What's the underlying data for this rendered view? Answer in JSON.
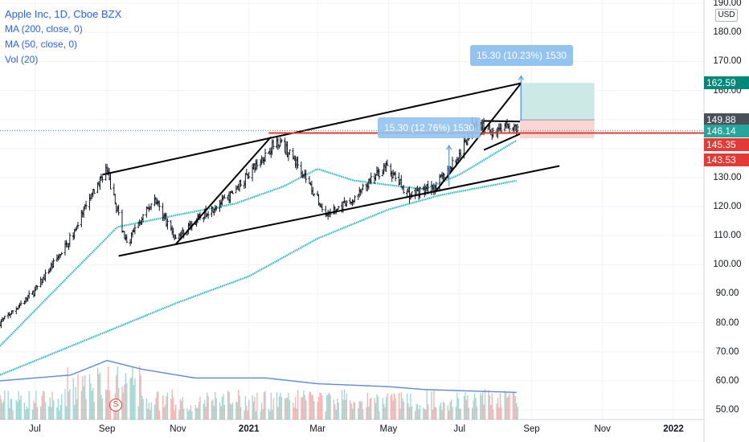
{
  "legend": {
    "title": "Apple Inc, 1D, Cboe BZX",
    "ma200": "MA (200, close, 0)",
    "ma50": "MA (50, close, 0)",
    "vol": "Vol (20)"
  },
  "currency": "USD",
  "colors": {
    "up": "#26a69a",
    "down": "#ef5350",
    "candle": "#131722",
    "ma": "#2fbdc8",
    "vol_ma": "#2962ff",
    "accent": "#2962ff",
    "target": "#cde9e6",
    "stop": "#f9d5d4",
    "measure_box": "#93c3f0"
  },
  "measure_labels": {
    "main": "15.30 (10.23%) 1530",
    "secondary": "15.30 (12.76%) 1530"
  },
  "price_tags": [
    {
      "value": "162.59",
      "price": 162.59,
      "bg": "#00897b"
    },
    {
      "value": "149.88",
      "price": 149.88,
      "bg": "#4a4f5a"
    },
    {
      "value": "146.14",
      "price": 146.14,
      "bg": "#26a69a"
    },
    {
      "value": "145.35",
      "price": 145.35,
      "bg": "#e53935"
    },
    {
      "value": "143.53",
      "price": 143.53,
      "bg": "#e53935"
    }
  ],
  "chart_data": {
    "type": "candlestick",
    "y_ticks": [
      "50.00",
      "60.00",
      "70.00",
      "80.00",
      "90.00",
      "100.00",
      "110.00",
      "120.00",
      "130.00",
      "140.00",
      "150.00",
      "160.00",
      "170.00",
      "180.00",
      "190.00"
    ],
    "ylim": [
      48,
      194
    ],
    "x_ticks": [
      "Jul",
      "Sep",
      "Nov",
      "2021",
      "Mar",
      "May",
      "Jul",
      "Sep",
      "Nov",
      "2022"
    ],
    "x_tick_dates": [
      "2020-07-01",
      "2020-09-01",
      "2020-11-01",
      "2021-01-01",
      "2021-03-01",
      "2021-05-01",
      "2021-07-01",
      "2021-09-01",
      "2021-11-01",
      "2022-01-01"
    ],
    "close_anchors": [
      [
        "2020-06-01",
        80
      ],
      [
        "2020-07-01",
        91
      ],
      [
        "2020-07-30",
        108
      ],
      [
        "2020-08-31",
        133
      ],
      [
        "2020-09-18",
        107
      ],
      [
        "2020-10-12",
        123
      ],
      [
        "2020-10-30",
        109
      ],
      [
        "2020-11-25",
        118
      ],
      [
        "2020-12-14",
        123
      ],
      [
        "2021-01-26",
        143
      ],
      [
        "2021-02-15",
        133
      ],
      [
        "2021-03-08",
        117
      ],
      [
        "2021-03-31",
        122
      ],
      [
        "2021-04-28",
        134
      ],
      [
        "2021-05-19",
        124
      ],
      [
        "2021-06-10",
        127
      ],
      [
        "2021-06-30",
        137
      ],
      [
        "2021-07-14",
        149
      ],
      [
        "2021-07-30",
        146
      ],
      [
        "2021-08-13",
        148
      ],
      [
        "2021-08-20",
        146.14
      ]
    ],
    "ma200_anchors": [
      [
        "2020-06-01",
        62
      ],
      [
        "2020-09-01",
        77
      ],
      [
        "2020-11-01",
        87
      ],
      [
        "2021-01-01",
        96
      ],
      [
        "2021-03-01",
        109
      ],
      [
        "2021-05-01",
        119
      ],
      [
        "2021-06-15",
        124
      ],
      [
        "2021-08-20",
        129
      ]
    ],
    "ma50_anchors": [
      [
        "2020-06-01",
        72
      ],
      [
        "2020-07-25",
        94
      ],
      [
        "2020-09-10",
        113
      ],
      [
        "2020-10-30",
        117
      ],
      [
        "2020-12-20",
        121
      ],
      [
        "2021-01-31",
        127
      ],
      [
        "2021-03-01",
        133
      ],
      [
        "2021-04-01",
        129
      ],
      [
        "2021-05-10",
        127
      ],
      [
        "2021-06-01",
        126
      ],
      [
        "2021-07-01",
        131
      ],
      [
        "2021-08-20",
        143
      ]
    ],
    "volume_ma_anchors": [
      [
        "2020-06-01",
        60
      ],
      [
        "2020-08-01",
        62
      ],
      [
        "2020-09-01",
        67
      ],
      [
        "2020-10-01",
        64
      ],
      [
        "2020-11-15",
        61
      ],
      [
        "2021-01-15",
        61
      ],
      [
        "2021-03-01",
        59
      ],
      [
        "2021-05-01",
        58
      ],
      [
        "2021-06-01",
        57
      ],
      [
        "2021-08-20",
        56
      ]
    ],
    "trendlines": [
      {
        "name": "channel-upper-line",
        "p1": [
          "2020-08-28",
          131
        ],
        "p2": [
          "2021-08-23",
          162.5
        ],
        "width": 2
      },
      {
        "name": "channel-lower-line",
        "p1": [
          "2020-09-11",
          103
        ],
        "p2": [
          "2021-09-25",
          134
        ],
        "width": 2
      },
      {
        "name": "rally-line-1",
        "p1": [
          "2020-10-30",
          107
        ],
        "p2": [
          "2021-01-20",
          144
        ],
        "width": 2
      },
      {
        "name": "rally-line-2",
        "p1": [
          "2021-06-10",
          125
        ],
        "p2": [
          "2021-08-23",
          162.5
        ],
        "width": 2
      },
      {
        "name": "flag-upper-line",
        "p1": [
          "2021-07-22",
          149.5
        ],
        "p2": [
          "2021-08-22",
          149.3
        ],
        "width": 2
      },
      {
        "name": "flag-lower-line",
        "p1": [
          "2021-07-22",
          139.5
        ],
        "p2": [
          "2021-08-22",
          145
        ],
        "width": 2
      }
    ],
    "position": {
      "start": "2021-08-22",
      "end": "2021-10-25",
      "target": 162.59,
      "entry": 149.88,
      "stop": 143.53
    },
    "horizontal_lines": [
      {
        "name": "current-price-dotted-line",
        "price": 146.14,
        "style": "dotted"
      },
      {
        "name": "resistance-red-line",
        "price": 145.35,
        "style": "solid",
        "from": "2021-01-18"
      }
    ],
    "measure_arrows": [
      {
        "date": "2021-08-23",
        "from": 149.5,
        "to": 165
      },
      {
        "date": "2021-06-22",
        "from": 127,
        "to": 141
      }
    ]
  }
}
